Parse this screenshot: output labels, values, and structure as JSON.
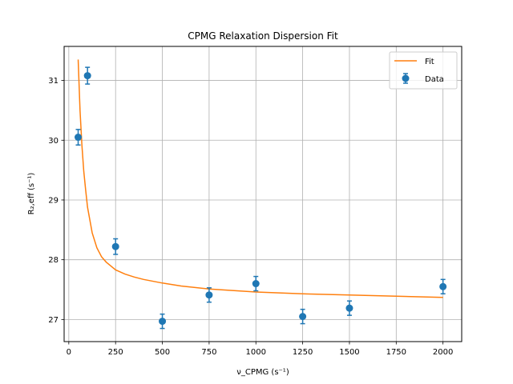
{
  "chart_data": {
    "type": "scatter",
    "title": "CPMG Relaxation Dispersion Fit",
    "xlabel": "ν_CPMG (s⁻¹)",
    "ylabel": "R₂,eff (s⁻¹)",
    "xlim": [
      -25,
      2100
    ],
    "ylim": [
      26.63,
      31.57
    ],
    "xticks": [
      0,
      250,
      500,
      750,
      1000,
      1250,
      1500,
      1750,
      2000
    ],
    "yticks": [
      27,
      28,
      29,
      30,
      31
    ],
    "grid": true,
    "legend_position": "upper right",
    "series": [
      {
        "name": "Data",
        "kind": "errorbar",
        "color": "#1f77b4",
        "x": [
          50,
          100,
          250,
          500,
          750,
          1000,
          1250,
          1500,
          2000
        ],
        "y": [
          30.05,
          31.08,
          28.22,
          26.97,
          27.41,
          27.6,
          27.05,
          27.19,
          27.55
        ],
        "yerr": [
          0.13,
          0.14,
          0.13,
          0.12,
          0.12,
          0.12,
          0.12,
          0.12,
          0.12
        ]
      },
      {
        "name": "Fit",
        "kind": "line",
        "color": "#ff7f0e",
        "x": [
          50,
          60,
          70,
          80,
          90,
          100,
          125,
          150,
          175,
          200,
          250,
          300,
          350,
          400,
          500,
          600,
          750,
          1000,
          1250,
          1500,
          1750,
          2000
        ],
        "y": [
          31.35,
          30.5,
          29.92,
          29.48,
          29.17,
          28.88,
          28.45,
          28.2,
          28.05,
          27.96,
          27.83,
          27.76,
          27.71,
          27.67,
          27.61,
          27.56,
          27.51,
          27.46,
          27.43,
          27.41,
          27.39,
          27.37
        ]
      }
    ]
  }
}
